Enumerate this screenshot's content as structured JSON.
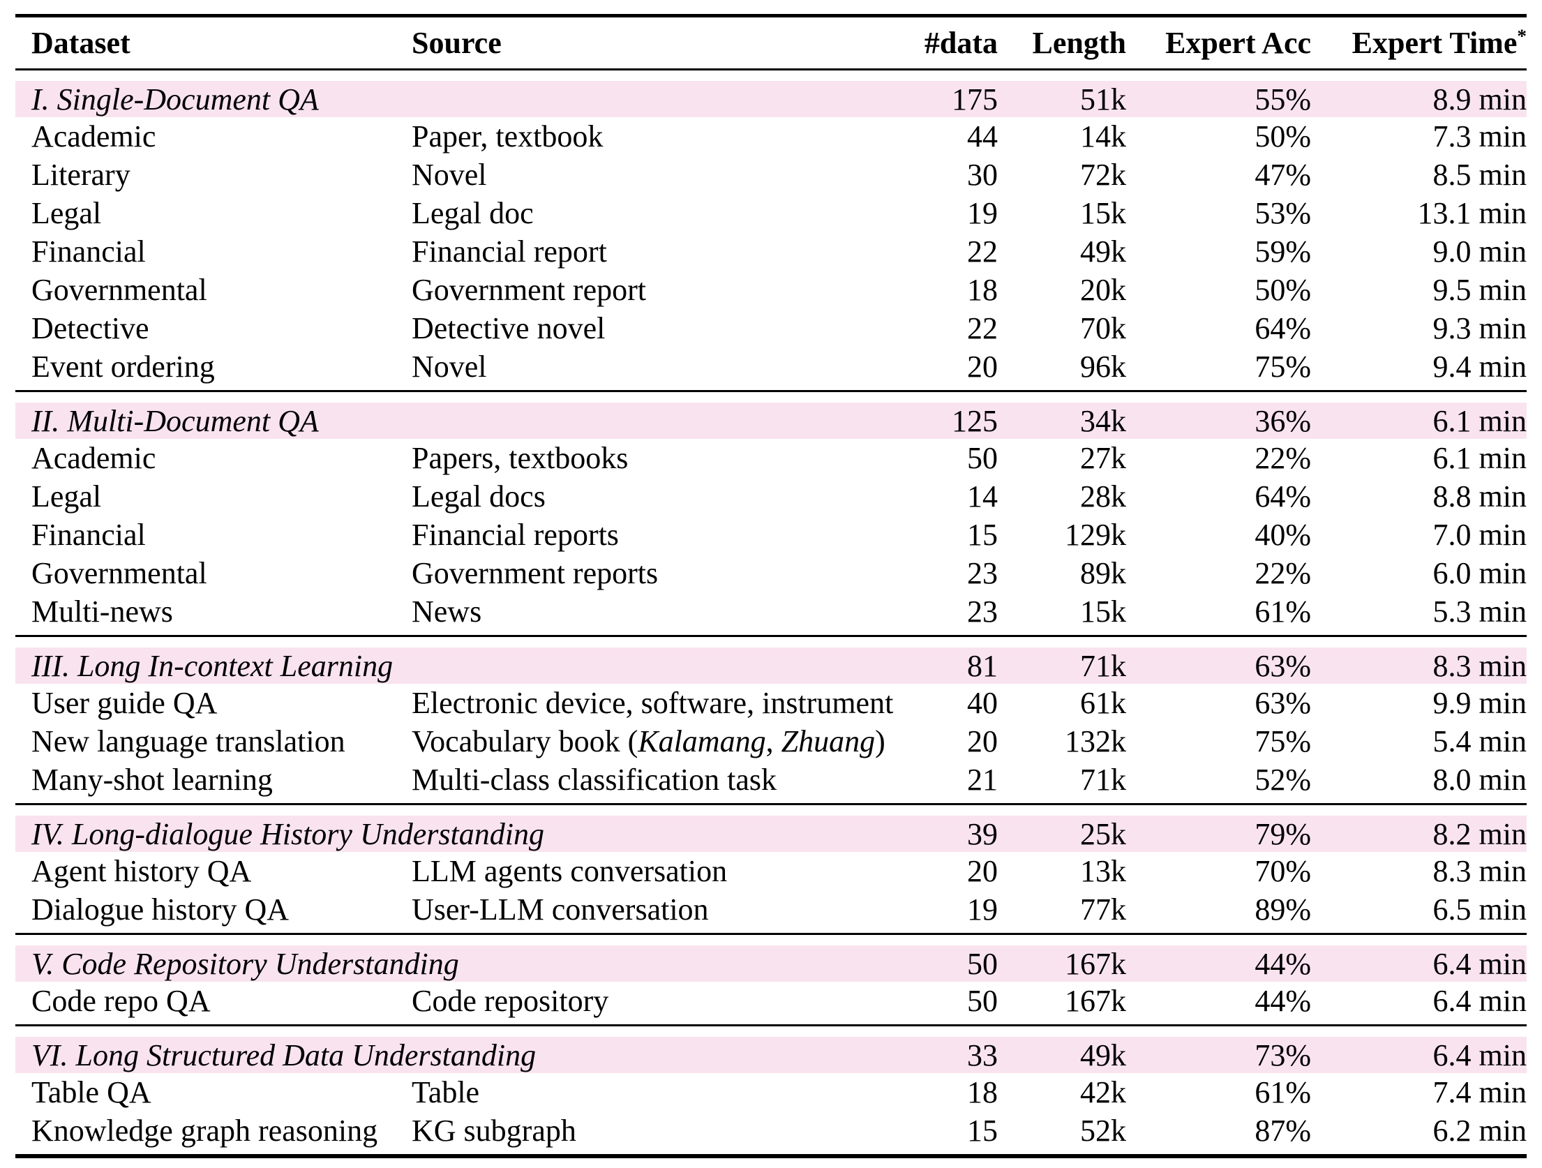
{
  "table": {
    "accent_row_color": "#f9e3ef",
    "text_color": "#000000",
    "rule_color": "#000000",
    "columns": [
      {
        "key": "dataset",
        "label": "Dataset",
        "align": "left"
      },
      {
        "key": "source",
        "label": "Source",
        "align": "left"
      },
      {
        "key": "ndata",
        "label": "#data",
        "align": "right"
      },
      {
        "key": "length",
        "label": "Length",
        "align": "right"
      },
      {
        "key": "expert_acc",
        "label": "Expert Acc",
        "align": "right"
      },
      {
        "key": "expert_time",
        "label": "Expert Time",
        "sup": "*",
        "align": "right"
      }
    ],
    "sections": [
      {
        "header": {
          "dataset": "I. Single-Document QA",
          "source": "",
          "ndata": "175",
          "length": "51k",
          "expert_acc": "55%",
          "expert_time": "8.9 min"
        },
        "rows": [
          {
            "dataset": "Academic",
            "source": "Paper, textbook",
            "ndata": "44",
            "length": "14k",
            "expert_acc": "50%",
            "expert_time": "7.3 min"
          },
          {
            "dataset": "Literary",
            "source": "Novel",
            "ndata": "30",
            "length": "72k",
            "expert_acc": "47%",
            "expert_time": "8.5 min"
          },
          {
            "dataset": "Legal",
            "source": "Legal doc",
            "ndata": "19",
            "length": "15k",
            "expert_acc": "53%",
            "expert_time": "13.1 min"
          },
          {
            "dataset": "Financial",
            "source": "Financial report",
            "ndata": "22",
            "length": "49k",
            "expert_acc": "59%",
            "expert_time": "9.0 min"
          },
          {
            "dataset": "Governmental",
            "source": "Government report",
            "ndata": "18",
            "length": "20k",
            "expert_acc": "50%",
            "expert_time": "9.5 min"
          },
          {
            "dataset": "Detective",
            "source": "Detective novel",
            "ndata": "22",
            "length": "70k",
            "expert_acc": "64%",
            "expert_time": "9.3 min"
          },
          {
            "dataset": "Event ordering",
            "source": "Novel",
            "ndata": "20",
            "length": "96k",
            "expert_acc": "75%",
            "expert_time": "9.4 min"
          }
        ]
      },
      {
        "header": {
          "dataset": "II. Multi-Document QA",
          "source": "",
          "ndata": "125",
          "length": "34k",
          "expert_acc": "36%",
          "expert_time": "6.1 min"
        },
        "rows": [
          {
            "dataset": "Academic",
            "source": "Papers, textbooks",
            "ndata": "50",
            "length": "27k",
            "expert_acc": "22%",
            "expert_time": "6.1 min"
          },
          {
            "dataset": "Legal",
            "source": "Legal docs",
            "ndata": "14",
            "length": "28k",
            "expert_acc": "64%",
            "expert_time": "8.8 min"
          },
          {
            "dataset": "Financial",
            "source": "Financial reports",
            "ndata": "15",
            "length": "129k",
            "expert_acc": "40%",
            "expert_time": "7.0 min"
          },
          {
            "dataset": "Governmental",
            "source": "Government reports",
            "ndata": "23",
            "length": "89k",
            "expert_acc": "22%",
            "expert_time": "6.0 min"
          },
          {
            "dataset": "Multi-news",
            "source": "News",
            "ndata": "23",
            "length": "15k",
            "expert_acc": "61%",
            "expert_time": "5.3 min"
          }
        ]
      },
      {
        "header": {
          "dataset": "III. Long In-context Learning",
          "source": "",
          "ndata": "81",
          "length": "71k",
          "expert_acc": "63%",
          "expert_time": "8.3 min"
        },
        "rows": [
          {
            "dataset": "User guide QA",
            "source": "Electronic device, software, instrument",
            "ndata": "40",
            "length": "61k",
            "expert_acc": "63%",
            "expert_time": "9.9 min"
          },
          {
            "dataset": "New language translation",
            "source": "Vocabulary book (*Kalamang*, *Zhuang*)",
            "ndata": "20",
            "length": "132k",
            "expert_acc": "75%",
            "expert_time": "5.4 min"
          },
          {
            "dataset": "Many-shot learning",
            "source": "Multi-class classification task",
            "ndata": "21",
            "length": "71k",
            "expert_acc": "52%",
            "expert_time": "8.0 min"
          }
        ]
      },
      {
        "header": {
          "dataset": "IV. Long-dialogue History Understanding",
          "source": "",
          "ndata": "39",
          "length": "25k",
          "expert_acc": "79%",
          "expert_time": "8.2 min"
        },
        "rows": [
          {
            "dataset": "Agent history QA",
            "source": "LLM agents conversation",
            "ndata": "20",
            "length": "13k",
            "expert_acc": "70%",
            "expert_time": "8.3 min"
          },
          {
            "dataset": "Dialogue history QA",
            "source": "User-LLM conversation",
            "ndata": "19",
            "length": "77k",
            "expert_acc": "89%",
            "expert_time": "6.5 min"
          }
        ]
      },
      {
        "header": {
          "dataset": "V. Code Repository Understanding",
          "source": "",
          "ndata": "50",
          "length": "167k",
          "expert_acc": "44%",
          "expert_time": "6.4 min"
        },
        "rows": [
          {
            "dataset": "Code repo QA",
            "source": "Code repository",
            "ndata": "50",
            "length": "167k",
            "expert_acc": "44%",
            "expert_time": "6.4 min"
          }
        ]
      },
      {
        "header": {
          "dataset": "VI. Long Structured Data Understanding",
          "source": "",
          "ndata": "33",
          "length": "49k",
          "expert_acc": "73%",
          "expert_time": "6.4 min"
        },
        "rows": [
          {
            "dataset": "Table QA",
            "source": "Table",
            "ndata": "18",
            "length": "42k",
            "expert_acc": "61%",
            "expert_time": "7.4 min"
          },
          {
            "dataset": "Knowledge graph reasoning",
            "source": "KG subgraph",
            "ndata": "15",
            "length": "52k",
            "expert_acc": "87%",
            "expert_time": "6.2 min"
          }
        ]
      }
    ]
  }
}
